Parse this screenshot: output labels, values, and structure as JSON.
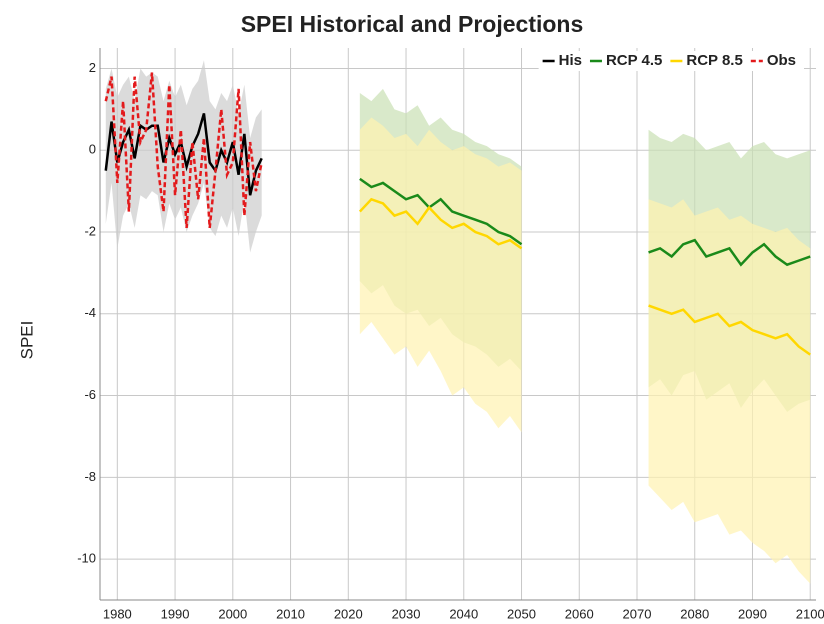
{
  "chart_data": {
    "type": "line",
    "title": "SPEI Historical and Projections",
    "y_label": "SPEI",
    "xlim": [
      1977,
      2101
    ],
    "ylim": [
      -11,
      2.5
    ],
    "xticks": [
      1980,
      1990,
      2000,
      2010,
      2020,
      2030,
      2040,
      2050,
      2060,
      2070,
      2080,
      2090,
      2100
    ],
    "yticks": [
      -10,
      -8,
      -6,
      -4,
      -2,
      0,
      2
    ],
    "grid": true,
    "legend": "top-right",
    "series": [
      {
        "name": "His",
        "color": "#000000",
        "band_color": "#cccccc",
        "dash": false,
        "x": [
          1978,
          1979,
          1980,
          1981,
          1982,
          1983,
          1984,
          1985,
          1986,
          1987,
          1988,
          1989,
          1990,
          1991,
          1992,
          1993,
          1994,
          1995,
          1996,
          1997,
          1998,
          1999,
          2000,
          2001,
          2002,
          2003,
          2004,
          2005
        ],
        "values": [
          -0.5,
          0.7,
          -0.3,
          0.2,
          0.5,
          -0.2,
          0.6,
          0.5,
          0.6,
          0.6,
          -0.3,
          0.3,
          -0.1,
          0.2,
          -0.4,
          0.1,
          0.4,
          0.9,
          -0.3,
          -0.5,
          0,
          -0.3,
          0.2,
          -0.6,
          0.4,
          -1.1,
          -0.5,
          -0.2
        ],
        "upper": [
          1.5,
          2,
          1.3,
          1.6,
          1.8,
          1.2,
          2,
          1.8,
          1.9,
          1.8,
          1.2,
          1.7,
          1.3,
          1.6,
          1.1,
          1.5,
          1.7,
          2.2,
          1.2,
          1,
          1.4,
          1.2,
          1.6,
          0.9,
          1.6,
          0.3,
          0.8,
          1
        ],
        "lower": [
          -1.8,
          -0.8,
          -2.4,
          -1.6,
          -1.3,
          -1.9,
          -1.1,
          -1.2,
          -1,
          -1.1,
          -2,
          -1.3,
          -1.7,
          -1.4,
          -2,
          -1.6,
          -1.3,
          -0.8,
          -1.9,
          -2.1,
          -1.6,
          -1.9,
          -1.4,
          -2.1,
          -1.2,
          -2.5,
          -2,
          -1.6
        ]
      },
      {
        "name": "RCP 4.5",
        "color": "#1a8a1a",
        "band_color": "#c9e0b4",
        "dash": false,
        "x": [
          2022,
          2024,
          2026,
          2028,
          2030,
          2032,
          2034,
          2036,
          2038,
          2040,
          2042,
          2044,
          2046,
          2048,
          2050,
          2060,
          2072,
          2074,
          2076,
          2078,
          2080,
          2082,
          2084,
          2086,
          2088,
          2090,
          2092,
          2094,
          2096,
          2098,
          2100
        ],
        "values": [
          -0.7,
          -0.9,
          -0.8,
          -1.0,
          -1.2,
          -1.1,
          -1.4,
          -1.2,
          -1.5,
          -1.6,
          -1.7,
          -1.8,
          -2.0,
          -2.1,
          -2.3,
          null,
          -2.5,
          -2.4,
          -2.6,
          -2.3,
          -2.2,
          -2.6,
          -2.5,
          -2.4,
          -2.8,
          -2.5,
          -2.3,
          -2.6,
          -2.8,
          -2.7,
          -2.6
        ],
        "upper": [
          1.4,
          1.2,
          1.5,
          1,
          0.9,
          1.1,
          0.6,
          0.8,
          0.5,
          0.4,
          0.2,
          0.1,
          -0.1,
          -0.2,
          -0.4,
          null,
          0.5,
          0.3,
          0.2,
          0.4,
          0.3,
          0,
          0.1,
          0.2,
          -0.2,
          0.1,
          0.2,
          -0.1,
          -0.2,
          -0.1,
          0
        ],
        "lower": [
          -3.2,
          -3.5,
          -3.3,
          -3.8,
          -4,
          -3.9,
          -4.3,
          -4.1,
          -4.5,
          -4.7,
          -4.8,
          -5,
          -5.3,
          -5.1,
          -5.4,
          null,
          -5.8,
          -5.6,
          -6,
          -5.5,
          -5.4,
          -6.1,
          -5.9,
          -5.7,
          -6.3,
          -5.9,
          -5.6,
          -6,
          -6.4,
          -6.2,
          -6.1
        ]
      },
      {
        "name": "RCP 8.5",
        "color": "#ffd700",
        "band_color": "#fff2b0",
        "dash": false,
        "x": [
          2022,
          2024,
          2026,
          2028,
          2030,
          2032,
          2034,
          2036,
          2038,
          2040,
          2042,
          2044,
          2046,
          2048,
          2050,
          2060,
          2072,
          2074,
          2076,
          2078,
          2080,
          2082,
          2084,
          2086,
          2088,
          2090,
          2092,
          2094,
          2096,
          2098,
          2100
        ],
        "values": [
          -1.5,
          -1.2,
          -1.3,
          -1.6,
          -1.5,
          -1.8,
          -1.4,
          -1.7,
          -1.9,
          -1.8,
          -2.0,
          -2.1,
          -2.3,
          -2.2,
          -2.4,
          null,
          -3.8,
          -3.9,
          -4.0,
          -3.9,
          -4.2,
          -4.1,
          -4.0,
          -4.3,
          -4.2,
          -4.4,
          -4.5,
          -4.6,
          -4.5,
          -4.8,
          -5.0
        ],
        "upper": [
          0.5,
          0.8,
          0.6,
          0.3,
          0.4,
          0.1,
          0.5,
          0.2,
          0,
          0.1,
          -0.1,
          -0.2,
          -0.4,
          -0.3,
          -0.5,
          null,
          -1.2,
          -1.3,
          -1.4,
          -1.2,
          -1.6,
          -1.5,
          -1.4,
          -1.7,
          -1.6,
          -1.8,
          -1.9,
          -2,
          -1.9,
          -2.2,
          -2.4
        ],
        "lower": [
          -4.5,
          -4.2,
          -4.6,
          -5,
          -4.8,
          -5.3,
          -4.9,
          -5.4,
          -6,
          -5.8,
          -6.2,
          -6.4,
          -6.8,
          -6.5,
          -6.9,
          null,
          -8.2,
          -8.5,
          -8.8,
          -8.6,
          -9.1,
          -9,
          -8.9,
          -9.4,
          -9.3,
          -9.6,
          -9.8,
          -10.1,
          -9.9,
          -10.3,
          -10.6
        ]
      },
      {
        "name": "Obs",
        "color": "#e31a1c",
        "dash": true,
        "x": [
          1978,
          1979,
          1980,
          1981,
          1982,
          1983,
          1984,
          1985,
          1986,
          1987,
          1988,
          1989,
          1990,
          1991,
          1992,
          1993,
          1994,
          1995,
          1996,
          1997,
          1998,
          1999,
          2000,
          2001,
          2002,
          2003,
          2004,
          2005
        ],
        "values": [
          1.2,
          1.8,
          -0.8,
          1.2,
          -1.5,
          1.8,
          0.2,
          0.5,
          1.9,
          -0.4,
          -1.5,
          1.6,
          -1.1,
          0.5,
          -1.9,
          0.2,
          -1.2,
          0.3,
          -1.9,
          -0.5,
          1.0,
          -0.6,
          -0.3,
          1.5,
          -1.6,
          0.2,
          -1.0,
          -0.3
        ]
      }
    ]
  }
}
